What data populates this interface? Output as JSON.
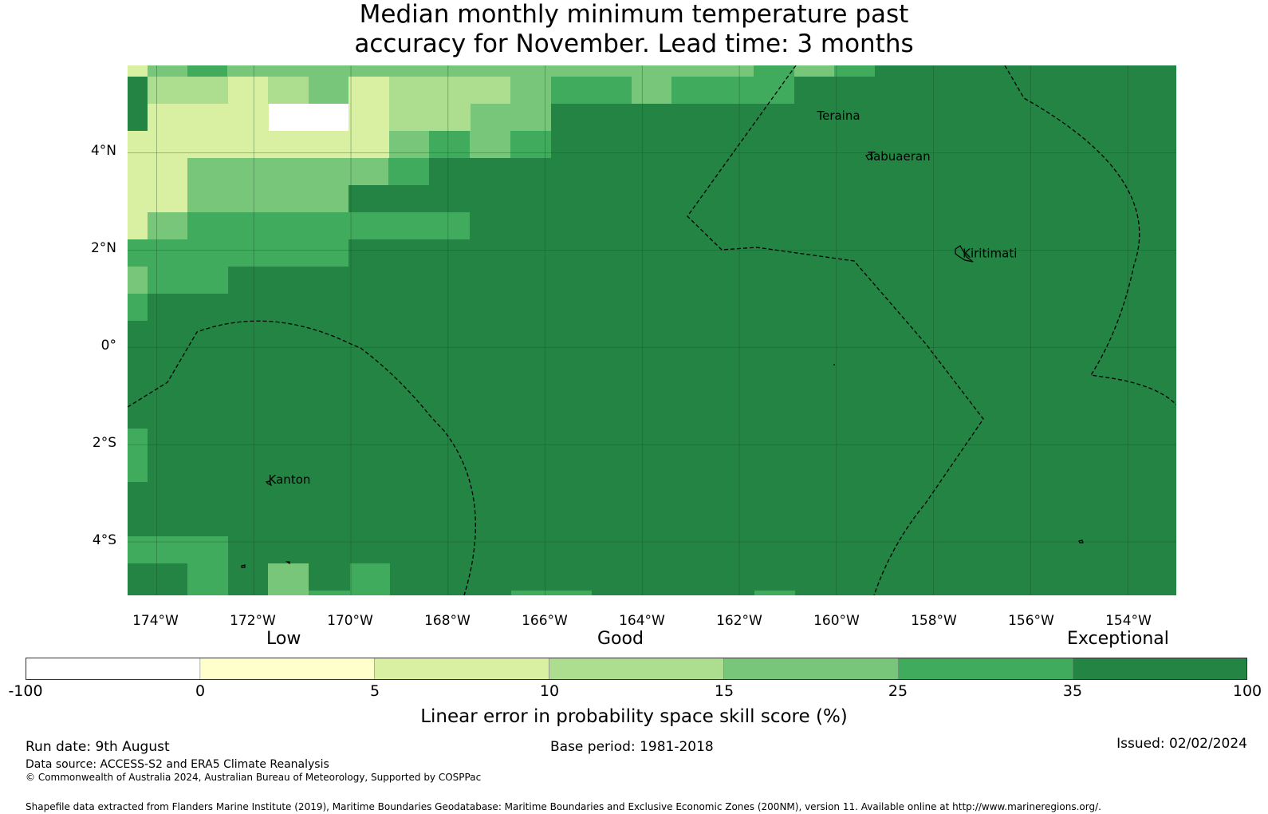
{
  "title": {
    "line1": "Median monthly minimum temperature past",
    "line2": "accuracy for November. Lead time: 3 months"
  },
  "map": {
    "lon_range": [
      -174.6,
      -153.0
    ],
    "lat_range": [
      -5.1,
      5.8
    ],
    "lon_ticks": [
      "174°W",
      "172°W",
      "170°W",
      "168°W",
      "166°W",
      "164°W",
      "162°W",
      "160°W",
      "158°W",
      "156°W",
      "154°W"
    ],
    "lat_ticks": [
      "4°N",
      "2°N",
      "0°",
      "2°S",
      "4°S"
    ],
    "places": [
      {
        "name": "Teraina",
        "lon": -160.4,
        "lat": 4.68
      },
      {
        "name": "Tabuaeran",
        "lon": -159.35,
        "lat": 3.85
      },
      {
        "name": "Kiritimati",
        "lon": -157.4,
        "lat": 1.85
      },
      {
        "name": "Kanton",
        "lon": -171.7,
        "lat": -2.8
      }
    ],
    "grid_lines": true,
    "boundary_style": "dashed"
  },
  "colorbar": {
    "categories": [
      "Low",
      "Good",
      "Exceptional"
    ],
    "ticks": [
      "-100",
      "0",
      "5",
      "10",
      "15",
      "25",
      "35",
      "100"
    ],
    "colors": [
      "#ffffff",
      "#ffffcc",
      "#d9f0a3",
      "#addd8e",
      "#78c679",
      "#41ab5d",
      "#238443"
    ],
    "label": "Linear error in probability space skill score (%)"
  },
  "footer": {
    "run_date": "Run date: 9th August",
    "base_period": "Base period: 1981-2018",
    "issued": "Issued: 02/02/2024",
    "data_source": "Data source: ACCESS-S2 and ERA5 Climate Reanalysis",
    "copyright": "© Commonwealth of Australia 2024, Australian Bureau of Meteorology, Supported by COSPPac",
    "shapefile": "Shapefile data extracted from Flanders Marine Institute (2019), Maritime Boundaries Geodatabase: Maritime Boundaries and Exclusive Economic Zones (200NM), version 11. Available online at http://www.marineregions.org/."
  }
}
